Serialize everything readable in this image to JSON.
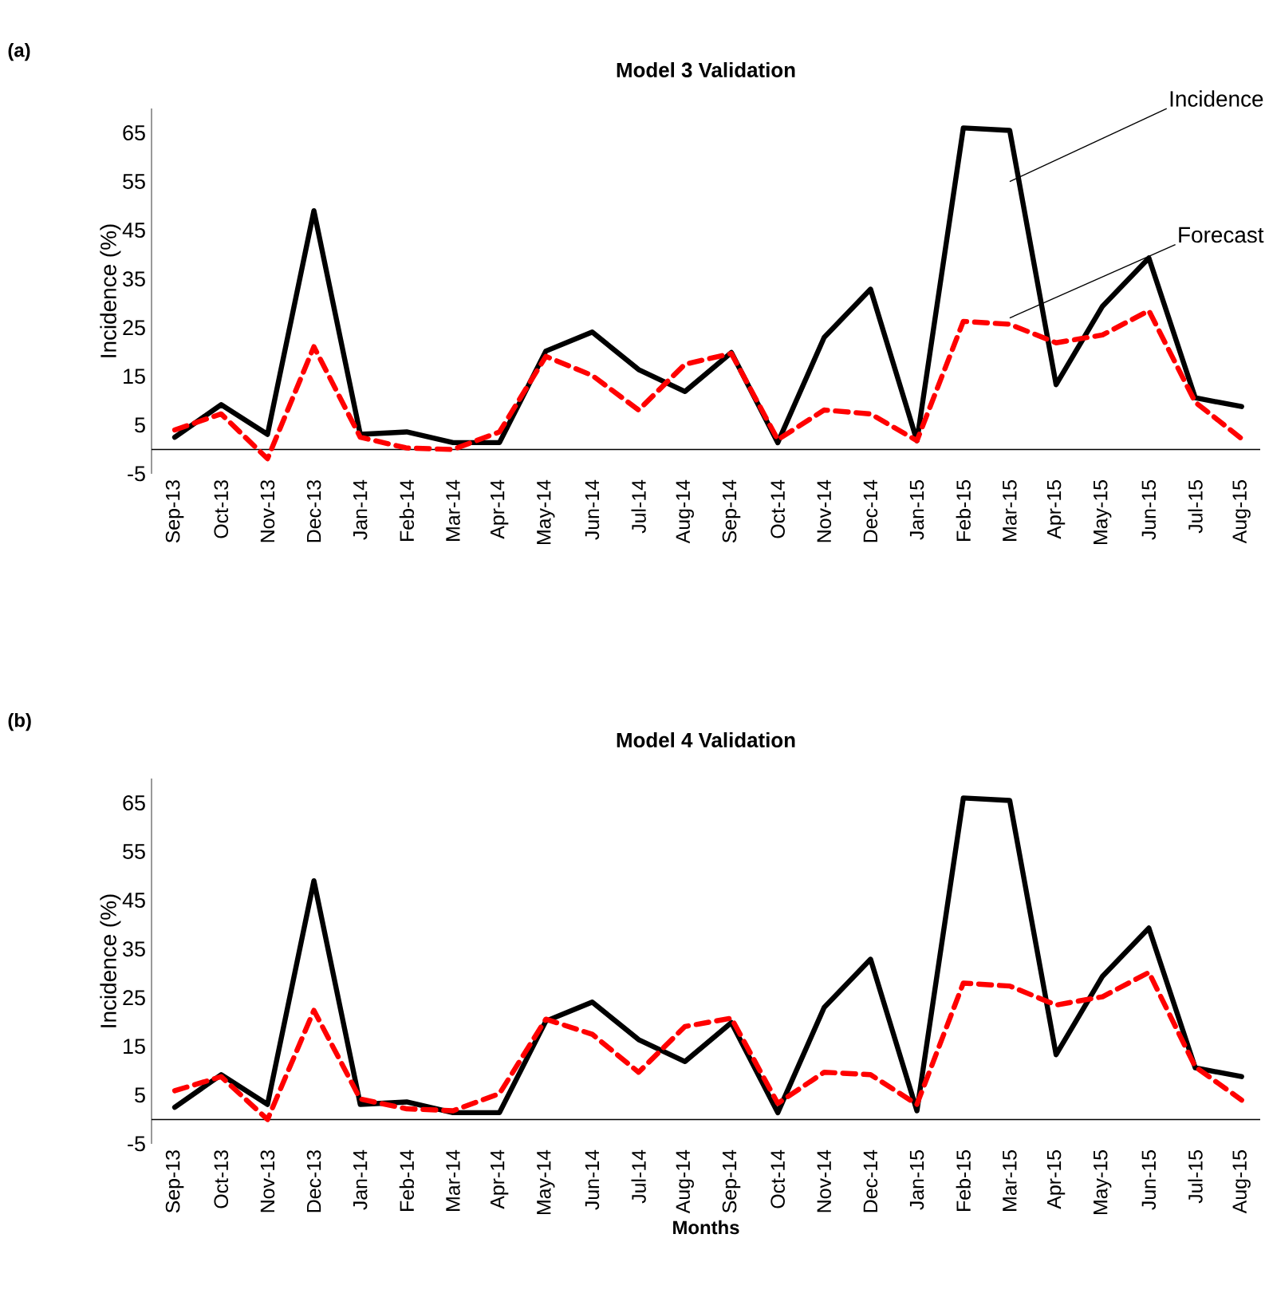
{
  "chart_data": [
    {
      "type": "line",
      "title": "Model 3 Validation",
      "ylabel": "Incidence (%)",
      "marker": "none",
      "categories": [
        "Sep-13",
        "Oct-13",
        "Nov-13",
        "Dec-13",
        "Jan-14",
        "Feb-14",
        "Mar-14",
        "Apr-14",
        "May-14",
        "Jun-14",
        "Jul-14",
        "Aug-14",
        "Sep-14",
        "Oct-14",
        "Nov-14",
        "Dec-14",
        "Jan-15",
        "Feb-15",
        "Mar-15",
        "Apr-15",
        "May-15",
        "Jun-15",
        "Jul-15",
        "Aug-15"
      ],
      "series": [
        {
          "color": "#000000",
          "line_style": "solid",
          "values": [
            2.5,
            9.2,
            3.1,
            49,
            3.1,
            3.6,
            1.4,
            1.4,
            20.2,
            24.1,
            16.4,
            11.9,
            19.9,
            1.4,
            23,
            32.9,
            1.8,
            66,
            65.5,
            13.3,
            29.4,
            39.3,
            10.6,
            8.8
          ]
        },
        {
          "color": "#ff0000",
          "line_style": "dashed",
          "values": [
            4,
            7.3,
            -1.9,
            21.1,
            2.5,
            0.3,
            0,
            3.6,
            19.1,
            15.2,
            8.1,
            17.5,
            19.7,
            2,
            8.1,
            7.3,
            1.8,
            26.3,
            25.7,
            21.9,
            23.5,
            28.5,
            9.7,
            2.2
          ]
        }
      ],
      "ylim": [
        -5,
        70
      ],
      "yticks": [
        -5,
        5,
        15,
        25,
        35,
        45,
        55,
        65
      ],
      "annotations": [
        "(a)",
        {
          "text": "Incidence",
          "x": "Mar-15",
          "y": 55
        },
        {
          "text": "Forecast",
          "x": "Mar-15",
          "y": 27
        }
      ]
    },
    {
      "type": "line",
      "title": "Model 4 Validation",
      "ylabel": "Incidence (%)",
      "xlabel": "Months",
      "marker": "none",
      "categories": [
        "Sep-13",
        "Oct-13",
        "Nov-13",
        "Dec-13",
        "Jan-14",
        "Feb-14",
        "Mar-14",
        "Apr-14",
        "May-14",
        "Jun-14",
        "Jul-14",
        "Aug-14",
        "Sep-14",
        "Oct-14",
        "Nov-14",
        "Dec-14",
        "Jan-15",
        "Feb-15",
        "Mar-15",
        "Apr-15",
        "May-15",
        "Jun-15",
        "Jul-15",
        "Aug-15"
      ],
      "series": [
        {
          "color": "#000000",
          "line_style": "solid",
          "values": [
            2.5,
            9.2,
            3.1,
            49,
            3.1,
            3.6,
            1.4,
            1.4,
            20.2,
            24.1,
            16.4,
            11.9,
            19.9,
            1.4,
            23,
            32.9,
            1.8,
            66,
            65.5,
            13.3,
            29.4,
            39.3,
            10.6,
            8.8
          ]
        },
        {
          "color": "#ff0000",
          "line_style": "dashed",
          "values": [
            5.9,
            8.8,
            0,
            22.4,
            4.2,
            2.2,
            1.8,
            5.3,
            20.6,
            17.5,
            9.7,
            19.1,
            20.8,
            3.3,
            9.7,
            9.2,
            3.1,
            28,
            27.4,
            23.5,
            25.2,
            30.2,
            10.8,
            4
          ]
        }
      ],
      "ylim": [
        -5,
        70
      ],
      "yticks": [
        -5,
        5,
        15,
        25,
        35,
        45,
        55,
        65
      ],
      "annotations": [
        "(b)"
      ]
    }
  ]
}
